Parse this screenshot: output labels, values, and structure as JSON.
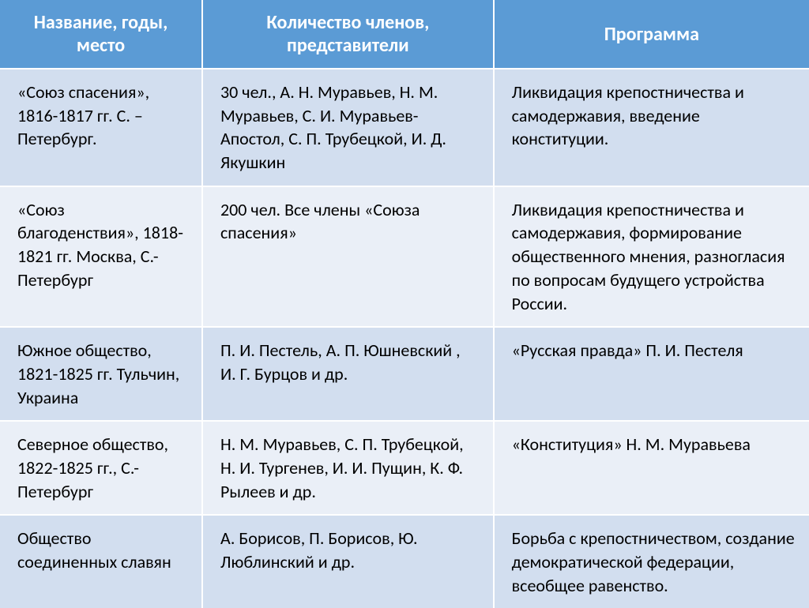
{
  "header_bg": "#5b9bd5",
  "row_colors": [
    "#d2deef",
    "#eaeff7",
    "#d2deef",
    "#eaeff7",
    "#d2deef"
  ],
  "columns": [
    "Название, годы, место",
    "Количество членов, представители",
    "Программа"
  ],
  "rows": [
    {
      "name": "«Союз спасения», 1816-1817 гг. С. – Петербург.",
      "members": "30 чел., А. Н. Муравьев, Н. М. Муравьев, С. И. Муравьев-Апостол, С. П. Трубецкой, И. Д. Якушкин",
      "program": "Ликвидация крепостничества и самодержавия, введение конституции."
    },
    {
      "name": "«Союз благоденствия», 1818-1821 гг. Москва, С.-Петербург",
      "members": "200 чел. Все члены «Союза спасения»",
      "program": "Ликвидация крепостничества и самодержавия, формирование общественного мнения, разногласия по вопросам будущего устройства России."
    },
    {
      "name": "Южное общество, 1821-1825 гг. Тульчин, Украина",
      "members": "П. И. Пестель, А. П. Юшневский , И. Г. Бурцов и др.",
      "program": "«Русская правда» П. И. Пестеля"
    },
    {
      "name": "Северное общество, 1822-1825 гг., С.-Петербург",
      "members": "Н. М. Муравьев, С. П. Трубецкой, Н. И. Тургенев, И. И. Пущин, К. Ф. Рылеев и др.",
      "program": "«Конституция» Н. М. Муравьева"
    },
    {
      "name": "Общество соединенных славян",
      "members": "А. Борисов, П. Борисов, Ю. Люблинский и др.",
      "program": "Борьба с крепостничеством, создание демократической федерации, всеобщее равенство."
    }
  ]
}
